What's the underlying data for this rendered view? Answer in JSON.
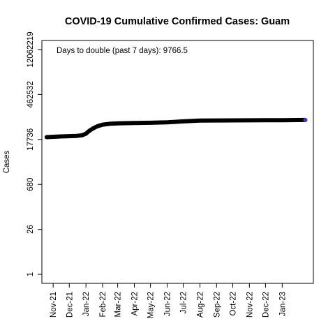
{
  "chart_data": {
    "type": "line",
    "title": "COVID-19 Cumulative Confirmed Cases: Guam",
    "xlabel": "",
    "ylabel": "Cases",
    "y_scale": "log",
    "yticks": [
      1,
      26,
      680,
      17736,
      462532,
      12062219
    ],
    "ytick_labels": [
      "1",
      "26",
      "680",
      "17736",
      "462532",
      "12062219"
    ],
    "ylim": [
      1,
      12062219
    ],
    "xticks": [
      "2021-11-01",
      "2021-12-01",
      "2022-01-01",
      "2022-02-01",
      "2022-03-01",
      "2022-04-01",
      "2022-05-01",
      "2022-06-01",
      "2022-07-01",
      "2022-08-01",
      "2022-09-01",
      "2022-10-01",
      "2022-11-01",
      "2022-12-01",
      "2023-01-01"
    ],
    "xtick_labels": [
      "Nov-21",
      "Dec-21",
      "Jan-22",
      "Feb-22",
      "Mar-22",
      "Apr-22",
      "May-22",
      "Jun-22",
      "Jul-22",
      "Aug-22",
      "Sep-22",
      "Oct-22",
      "Nov-22",
      "Dec-22",
      "Jan-23"
    ],
    "xlim": [
      "2021-10-11",
      "2023-02-28"
    ],
    "annotation": "Days to double (past 7 days): 9766.5",
    "line_color": "#000000",
    "marker_color": "#3a3ad6",
    "series": [
      {
        "x": [
          "2021-10-20",
          "2021-11-15",
          "2021-12-15",
          "2021-12-25",
          "2022-01-01",
          "2022-01-07",
          "2022-01-15",
          "2022-01-22",
          "2022-02-01",
          "2022-02-15",
          "2022-03-01",
          "2022-03-15",
          "2022-04-01",
          "2022-05-01",
          "2022-06-01",
          "2022-07-01",
          "2022-08-01",
          "2022-09-01",
          "2022-10-01",
          "2022-11-01",
          "2022-12-01",
          "2023-01-01",
          "2023-02-13"
        ],
        "y": [
          21000,
          22000,
          23000,
          24000,
          27000,
          33000,
          40000,
          46000,
          52000,
          55500,
          57000,
          57800,
          58400,
          59500,
          61500,
          66000,
          69500,
          70300,
          70700,
          71000,
          71300,
          71800,
          72800
        ]
      }
    ]
  }
}
